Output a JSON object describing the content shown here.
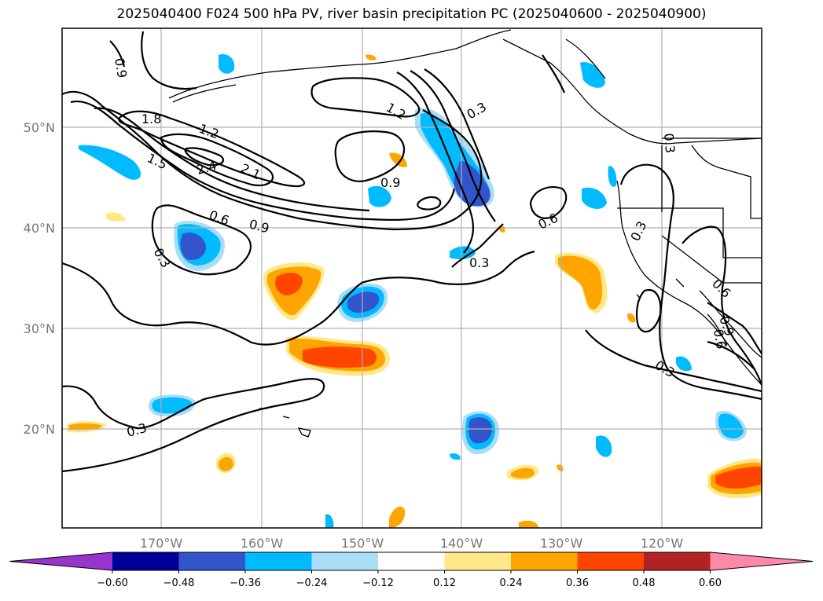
{
  "title": "2025040400 F024 500 hPa PV, river basin precipitation PC (2025040600 - 2025040900)",
  "map": {
    "lat_labels": [
      "50°N",
      "40°N",
      "30°N",
      "20°N"
    ],
    "lon_labels": [
      "170°W",
      "160°W",
      "150°W",
      "140°W",
      "130°W",
      "120°W"
    ],
    "contour_labels": [
      "0.9",
      "1.8",
      "1.2",
      "1.5",
      "2.4",
      "2.1",
      "1.2",
      "0.3",
      "0.9",
      "0.6",
      "0.9",
      "0.3",
      "0.6",
      "0.3",
      "0.3",
      "0.3",
      "0.6",
      "0.3",
      "0.3",
      "0.9",
      "0.6"
    ],
    "colors": {
      "contour": "#000000",
      "grid": "#b0b0b0",
      "coast": "#000000"
    }
  },
  "colorbar": {
    "colors": [
      "#9933cc",
      "#000099",
      "#3355cc",
      "#00bbff",
      "#aaddf8",
      "#ffffff",
      "#ffe88a",
      "#ffa500",
      "#ff4500",
      "#b22222",
      "#ff88aa"
    ],
    "ticks": [
      "−0.60",
      "−0.48",
      "−0.36",
      "−0.24",
      "−0.12",
      "0.12",
      "0.24",
      "0.36",
      "0.48",
      "0.60"
    ]
  }
}
